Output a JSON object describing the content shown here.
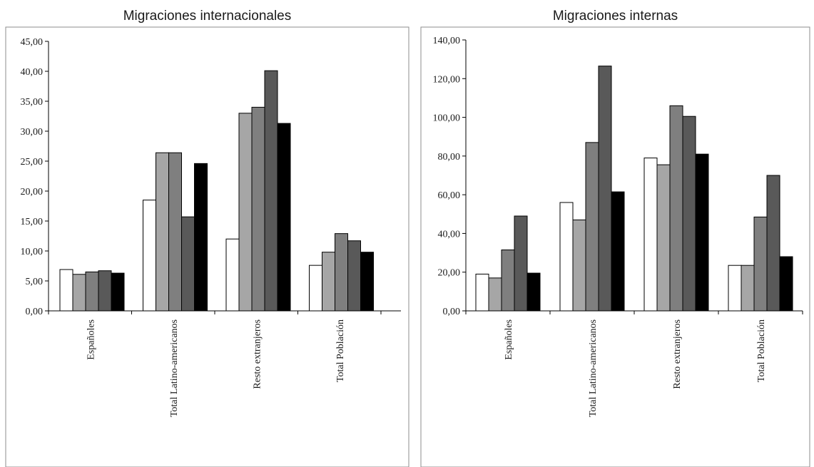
{
  "colors": {
    "series": [
      "#ffffff",
      "#a6a6a6",
      "#7f7f7f",
      "#595959",
      "#404040",
      "#000000"
    ],
    "stroke": "#000000",
    "frame": "#8c8c8c"
  },
  "chart_data": [
    {
      "type": "bar",
      "title": "Migraciones internacionales",
      "categories": [
        "Españoles",
        "Total Latino-americanos",
        "Resto extranjeros",
        "Total Población"
      ],
      "ylim": [
        0,
        45
      ],
      "yticks": [
        "0,00",
        "5,00",
        "10,00",
        "15,00",
        "20,00",
        "25,00",
        "30,00",
        "35,00",
        "40,00",
        "45,00"
      ],
      "ytick_values": [
        0,
        5,
        10,
        15,
        20,
        25,
        30,
        35,
        40,
        45
      ],
      "grid": false,
      "series": [
        {
          "values": [
            6.9,
            18.5,
            12.0,
            7.6
          ]
        },
        {
          "values": [
            6.1,
            26.4,
            33.0,
            9.8
          ]
        },
        {
          "values": [
            6.5,
            26.4,
            34.0,
            12.9
          ]
        },
        {
          "values": [
            6.7,
            15.7,
            40.1,
            11.7
          ]
        },
        {
          "values": [
            6.3,
            24.6,
            31.3,
            9.8
          ]
        }
      ]
    },
    {
      "type": "bar",
      "title": "Migraciones internas",
      "categories": [
        "Españoles",
        "Total Latino-americanos",
        "Resto extranjeros",
        "Total Población"
      ],
      "ylim": [
        0,
        140
      ],
      "yticks": [
        "0,00",
        "20,00",
        "40,00",
        "60,00",
        "80,00",
        "100,00",
        "120,00",
        "140,00"
      ],
      "ytick_values": [
        0,
        20,
        40,
        60,
        80,
        100,
        120,
        140
      ],
      "grid": false,
      "series": [
        {
          "values": [
            19.0,
            56.0,
            79.0,
            23.5
          ]
        },
        {
          "values": [
            17.0,
            47.0,
            75.5,
            23.5
          ]
        },
        {
          "values": [
            31.5,
            87.0,
            106.0,
            48.5
          ]
        },
        {
          "values": [
            49.0,
            126.5,
            100.5,
            70.0
          ]
        },
        {
          "values": [
            19.5,
            61.5,
            81.0,
            28.0
          ]
        }
      ]
    }
  ]
}
